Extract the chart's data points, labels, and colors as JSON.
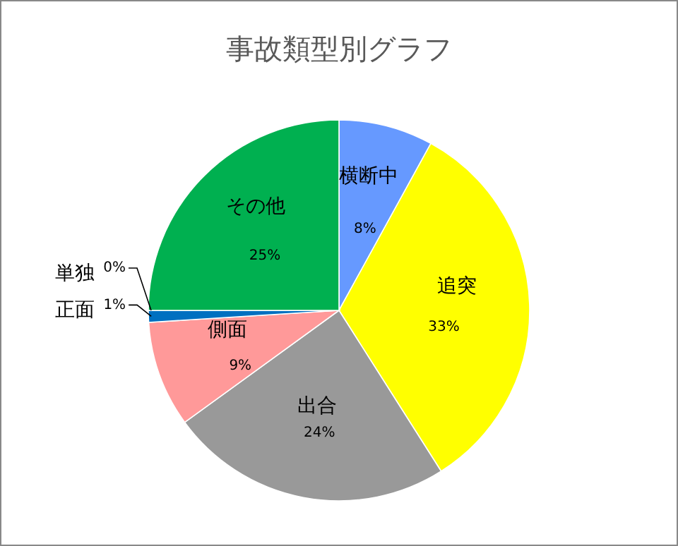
{
  "chart_data": {
    "type": "pie",
    "title": "事故類型別グラフ",
    "categories": [
      "横断中",
      "追突",
      "出合",
      "側面",
      "正面",
      "単独",
      "その他"
    ],
    "values": [
      8,
      33,
      24,
      9,
      1,
      0,
      25
    ],
    "colors": [
      "#6699ff",
      "#ffff00",
      "#999999",
      "#ff9999",
      "#0070c0",
      "#c0504d",
      "#00b050"
    ],
    "value_labels": [
      "8%",
      "33%",
      "24%",
      "9%",
      "1%",
      "0%",
      "25%"
    ],
    "legend": false
  }
}
